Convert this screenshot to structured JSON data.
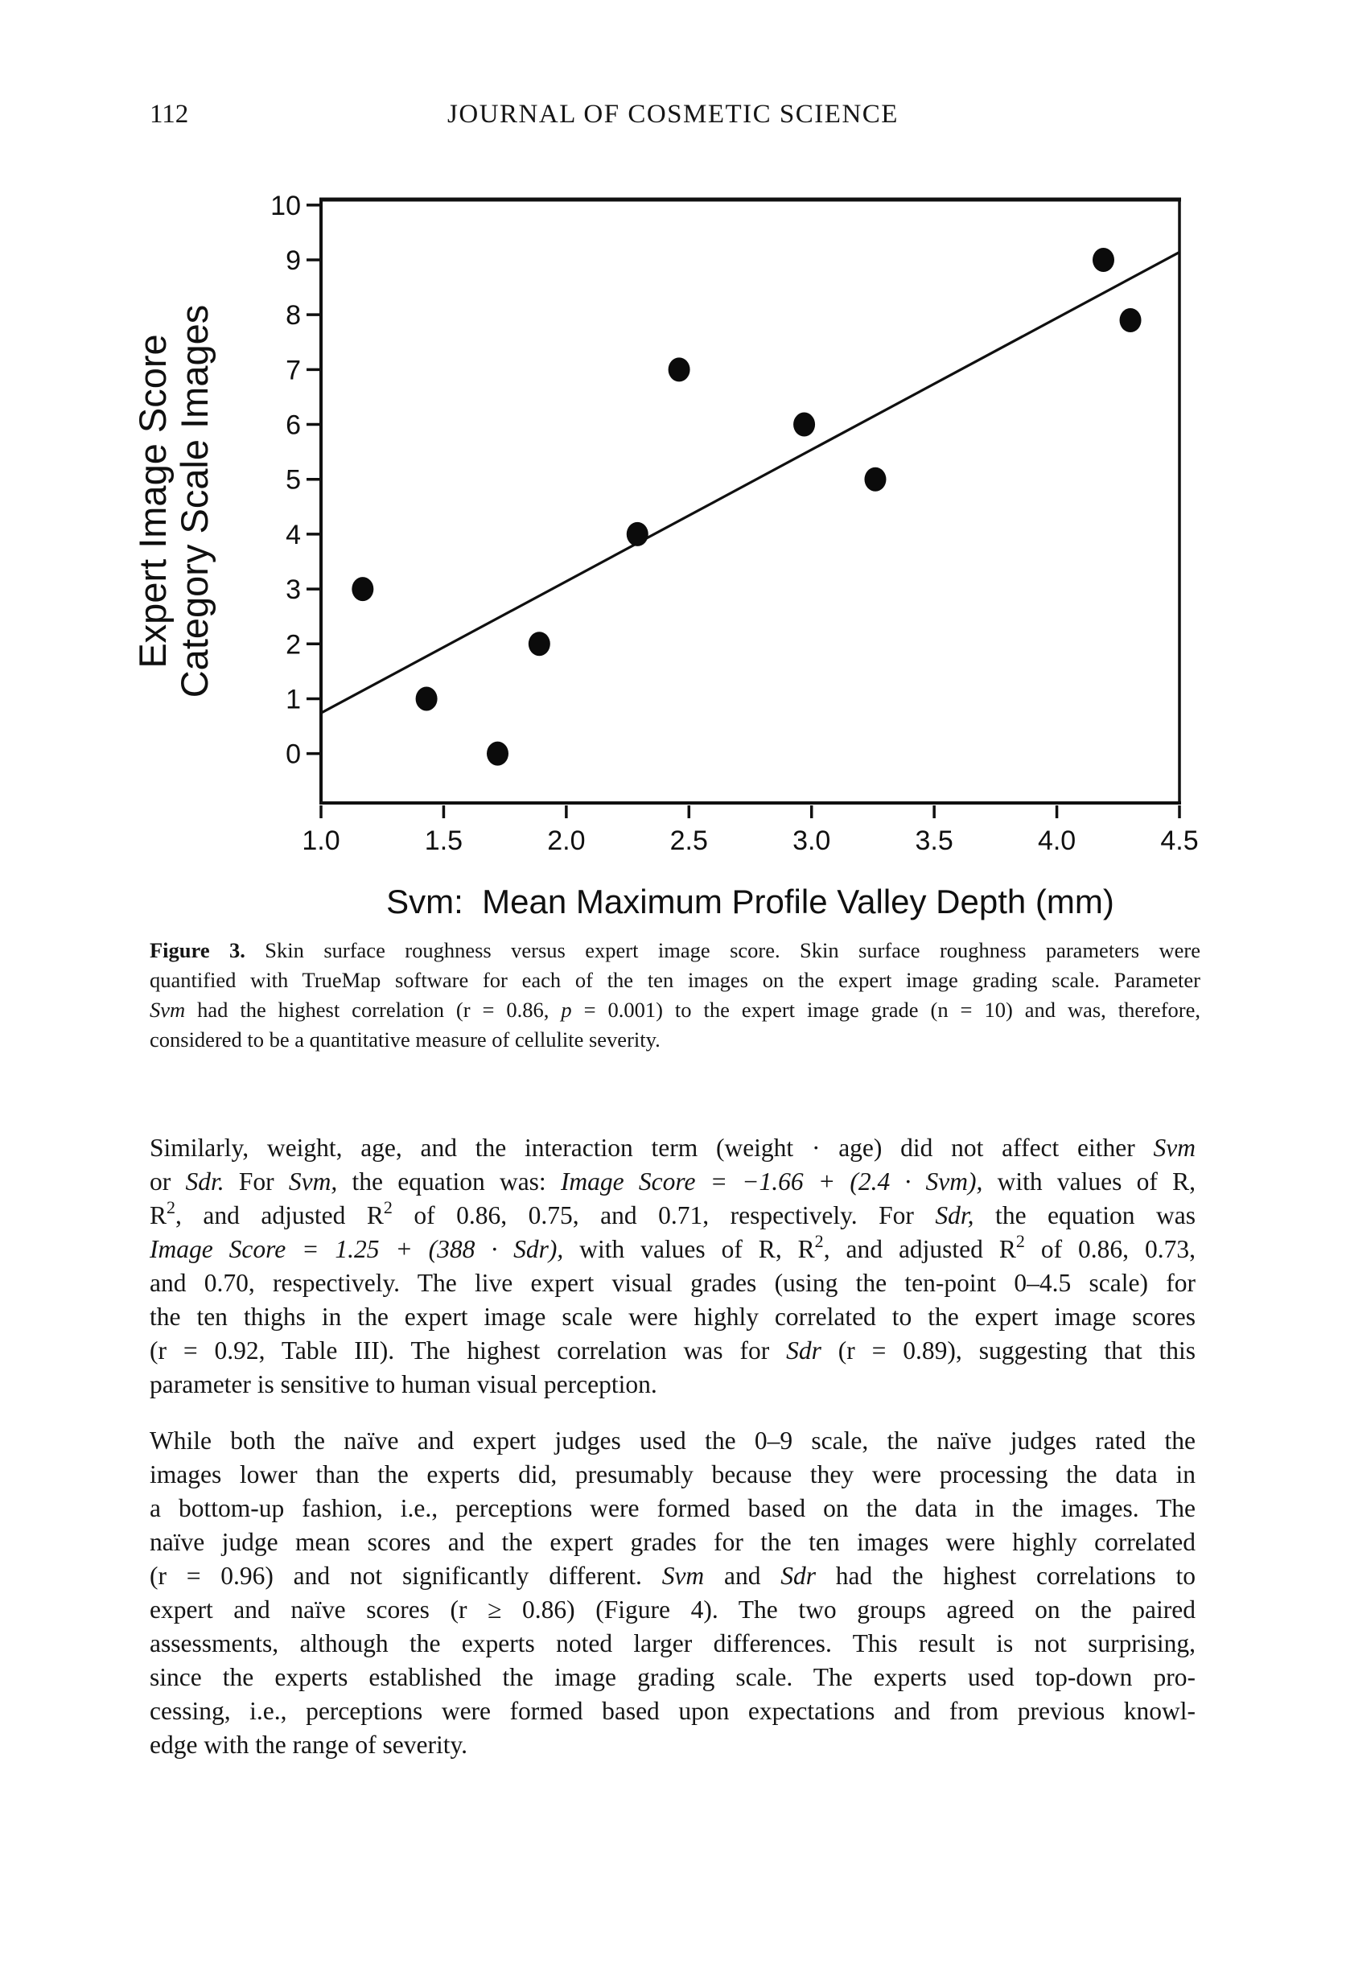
{
  "header": {
    "page_number": "112",
    "journal_title": "JOURNAL OF COSMETIC SCIENCE"
  },
  "chart_data": {
    "type": "scatter",
    "points": [
      [
        1.17,
        3
      ],
      [
        1.43,
        1
      ],
      [
        1.72,
        0
      ],
      [
        1.89,
        2
      ],
      [
        2.29,
        4
      ],
      [
        2.46,
        7
      ],
      [
        2.97,
        6
      ],
      [
        3.26,
        5
      ],
      [
        4.19,
        9
      ],
      [
        4.3,
        7.9
      ]
    ],
    "fit_line": {
      "intercept": -1.66,
      "slope": 2.4,
      "x_start": 1.0,
      "x_end": 4.5
    },
    "xlabel": "Svm:  Mean Maximum Profile Valley Depth (mm)",
    "ylabel_lines": [
      "Expert Image Score",
      "Category Scale Images"
    ],
    "x_tick_labels": [
      "1.0",
      "1.5",
      "2.0",
      "2.5",
      "3.0",
      "3.5",
      "4.0",
      "4.5"
    ],
    "x_ticks": [
      1.0,
      1.5,
      2.0,
      2.5,
      3.0,
      3.5,
      4.0,
      4.5
    ],
    "y_ticks": [
      0,
      1,
      2,
      3,
      4,
      5,
      6,
      7,
      8,
      9,
      10
    ],
    "y_tick_labels": [
      "0",
      "1",
      "2",
      "3",
      "4",
      "5",
      "6",
      "7",
      "8",
      "9",
      "10"
    ],
    "xlim": [
      1.0,
      4.5
    ],
    "ylim": [
      -0.9,
      10.1
    ],
    "grid": false,
    "legend": "none",
    "ink_color": "#101010",
    "marker_color": "#0b0b0b"
  },
  "figure": {
    "caption_lines": [
      "<b>Figure 3.</b> Skin surface roughness versus expert image score. Skin surface roughness parameters were",
      "quantified with TrueMap software for each of the ten images on the expert image grading scale. Parameter",
      "<i>Svm</i> had the highest correlation (r = 0.86, <i>p</i> = 0.001) to the expert image grade (n = 10) and was, therefore,",
      "considered to be a quantitative measure of cellulite severity."
    ]
  },
  "body": {
    "p1_lines": [
      "Similarly, weight, age, and the interaction term (weight · age) did not affect either <i>Svm</i>",
      "or <i>Sdr.</i> For <i>Svm,</i> the equation was: <i>Image Score = −1.66 + (2.4 · Svm),</i> with values of R,",
      "R<sup>2</sup>, and adjusted R<sup>2</sup> of 0.86, 0.75, and 0.71, respectively. For <i>Sdr,</i> the equation was",
      "<i>Image Score = 1.25 + (388 · Sdr),</i> with values of R, R<sup>2</sup>, and adjusted R<sup>2</sup> of 0.86, 0.73,",
      "and 0.70, respectively. The live expert visual grades (using the ten-point 0–4.5 scale) for",
      "the ten thighs in the expert image scale were highly correlated to the expert image scores",
      "(r = 0.92, Table III). The highest correlation was for <i>Sdr</i> (r = 0.89), suggesting that this",
      "parameter is sensitive to human visual perception."
    ],
    "p2_lines": [
      "While both the naïve and expert judges used the 0–9 scale, the naïve judges rated the",
      "images lower than the experts did, presumably because they were processing the data in",
      "a bottom-up fashion, i.e., perceptions were formed based on the data in the images. The",
      "naïve judge mean scores and the expert grades for the ten images were highly correlated",
      "(r = 0.96) and not significantly different. <i>Svm</i> and <i>Sdr</i> had the highest correlations to",
      "expert and naïve scores (r ≥ 0.86) (Figure 4). The two groups agreed on the paired",
      "assessments, although the experts noted larger differences. This result is not surprising,",
      "since the experts established the image grading scale. The experts used top-down pro-",
      "cessing, i.e., perceptions were formed based upon expectations and from previous knowl-",
      "edge with the range of severity."
    ]
  }
}
